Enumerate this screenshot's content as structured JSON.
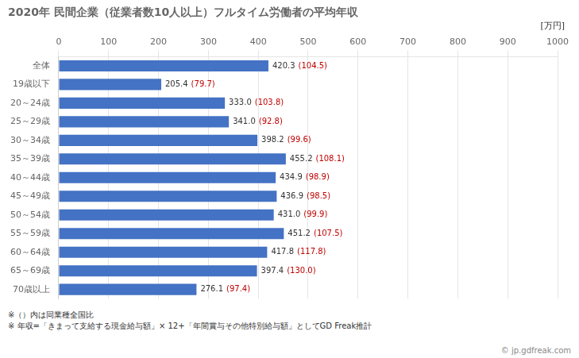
{
  "chart_data": {
    "type": "bar",
    "orientation": "horizontal",
    "title": "2020年 民間企業（従業者数10人以上）フルタイム労働者の平均年収",
    "unit_label": "[万円]",
    "categories": [
      "全体",
      "19歳以下",
      "20～24歳",
      "25～29歳",
      "30～34歳",
      "35～39歳",
      "40～44歳",
      "45～49歳",
      "50～54歳",
      "55～59歳",
      "60～64歳",
      "65～69歳",
      "70歳以上"
    ],
    "values": [
      420.3,
      205.4,
      333.0,
      341.0,
      398.2,
      455.2,
      434.9,
      436.9,
      431.0,
      451.2,
      417.8,
      397.4,
      276.1
    ],
    "value_labels": [
      "420.3",
      "205.4",
      "333.0",
      "341.0",
      "398.2",
      "455.2",
      "434.9",
      "436.9",
      "431.0",
      "451.2",
      "417.8",
      "397.4",
      "276.1"
    ],
    "ratios": {
      "values": [
        104.5,
        79.7,
        103.8,
        92.8,
        99.6,
        108.1,
        98.9,
        98.5,
        99.9,
        107.5,
        117.8,
        130.0,
        97.4
      ],
      "labels": [
        "(104.5)",
        "(79.7)",
        "(103.8)",
        "(92.8)",
        "(99.6)",
        "(108.1)",
        "(98.9)",
        "(98.5)",
        "(99.9)",
        "(107.5)",
        "(117.8)",
        "(130.0)",
        "(97.4)"
      ],
      "color": "#C00000"
    },
    "color": "#4472C4",
    "xlim": [
      0,
      1000
    ],
    "xticks": [
      0,
      100,
      200,
      300,
      400,
      500,
      600,
      700,
      800,
      900,
      1000
    ],
    "grid": true,
    "data_labels": true,
    "footnotes": [
      "※（）内は同業種全国比",
      "※ 年収=「きまって支給する現金給与額」× 12+「年間賞与その他特別給与額」としてGD Freak推計"
    ],
    "watermark": "© jp.gdfreak.com"
  }
}
